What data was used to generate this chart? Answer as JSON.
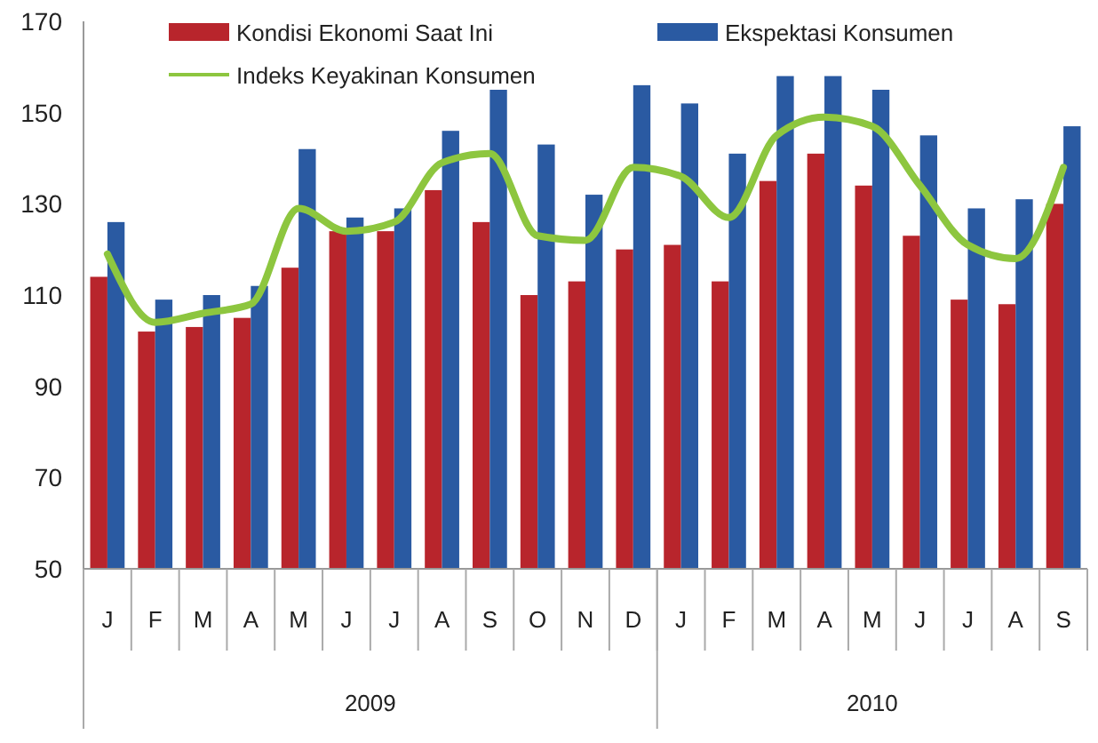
{
  "chart_data": {
    "type": "bar",
    "categories": [
      "J",
      "F",
      "M",
      "A",
      "M",
      "J",
      "J",
      "A",
      "S",
      "O",
      "N",
      "D",
      "J",
      "F",
      "M",
      "A",
      "M",
      "J",
      "J",
      "A",
      "S"
    ],
    "series": [
      {
        "name": "Kondisi Ekonomi Saat Ini",
        "color": "#b8252c",
        "values": [
          114,
          102,
          103,
          105,
          116,
          124,
          124,
          133,
          126,
          110,
          113,
          120,
          121,
          113,
          135,
          141,
          134,
          123,
          109,
          108,
          130
        ]
      },
      {
        "name": "Ekspektasi Konsumen",
        "color": "#2a5aa2",
        "values": [
          126,
          109,
          110,
          112,
          142,
          127,
          129,
          146,
          155,
          143,
          132,
          156,
          152,
          141,
          158,
          158,
          155,
          145,
          129,
          131,
          147
        ]
      },
      {
        "name": "Indeks Keyakinan Konsumen",
        "type": "line",
        "color": "#8dc63f",
        "values": [
          119,
          104,
          106,
          108,
          129,
          124,
          126,
          139,
          141,
          123,
          122,
          138,
          136,
          127,
          145,
          149,
          147,
          134,
          121,
          118,
          138
        ]
      }
    ],
    "ylim": [
      50,
      170
    ],
    "yticks": [
      50,
      70,
      90,
      110,
      130,
      150,
      170
    ],
    "grid": false,
    "legend": "top",
    "annotations": [
      "2009",
      "2010"
    ]
  }
}
